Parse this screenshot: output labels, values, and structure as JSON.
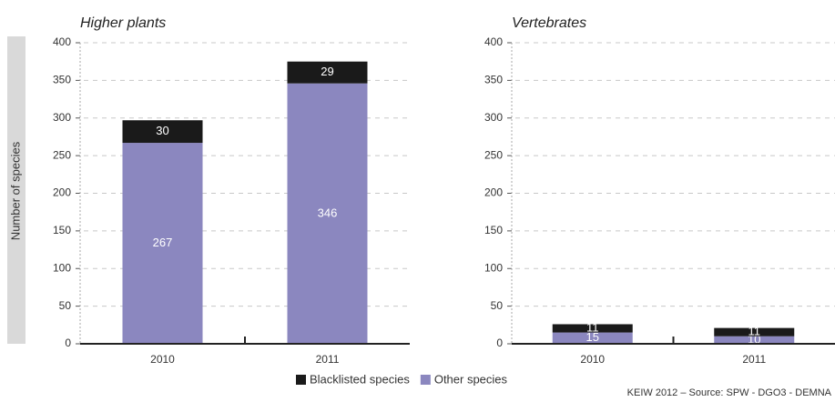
{
  "chart_data": [
    {
      "type": "stacked-bar",
      "title": "Higher plants",
      "ylabel": "Number of species",
      "categories": [
        "2010",
        "2011"
      ],
      "series": [
        {
          "name": "Other species",
          "color": "#8b87bf",
          "values": [
            267,
            346
          ]
        },
        {
          "name": "Blacklisted species",
          "color": "#1a1a1a",
          "values": [
            30,
            29
          ]
        }
      ],
      "ylim": [
        0,
        400
      ],
      "yticks": [
        0,
        50,
        100,
        150,
        200,
        250,
        300,
        350,
        400
      ],
      "grid": true
    },
    {
      "type": "stacked-bar",
      "title": "Vertebrates",
      "categories": [
        "2010",
        "2011"
      ],
      "series": [
        {
          "name": "Other species",
          "color": "#8b87bf",
          "values": [
            15,
            10
          ]
        },
        {
          "name": "Blacklisted species",
          "color": "#1a1a1a",
          "values": [
            11,
            11
          ]
        }
      ],
      "ylim": [
        0,
        400
      ],
      "yticks": [
        0,
        50,
        100,
        150,
        200,
        250,
        300,
        350,
        400
      ],
      "grid": true
    }
  ],
  "source": "KEIW 2012 – Source: SPW - DGO3 - DEMNA"
}
